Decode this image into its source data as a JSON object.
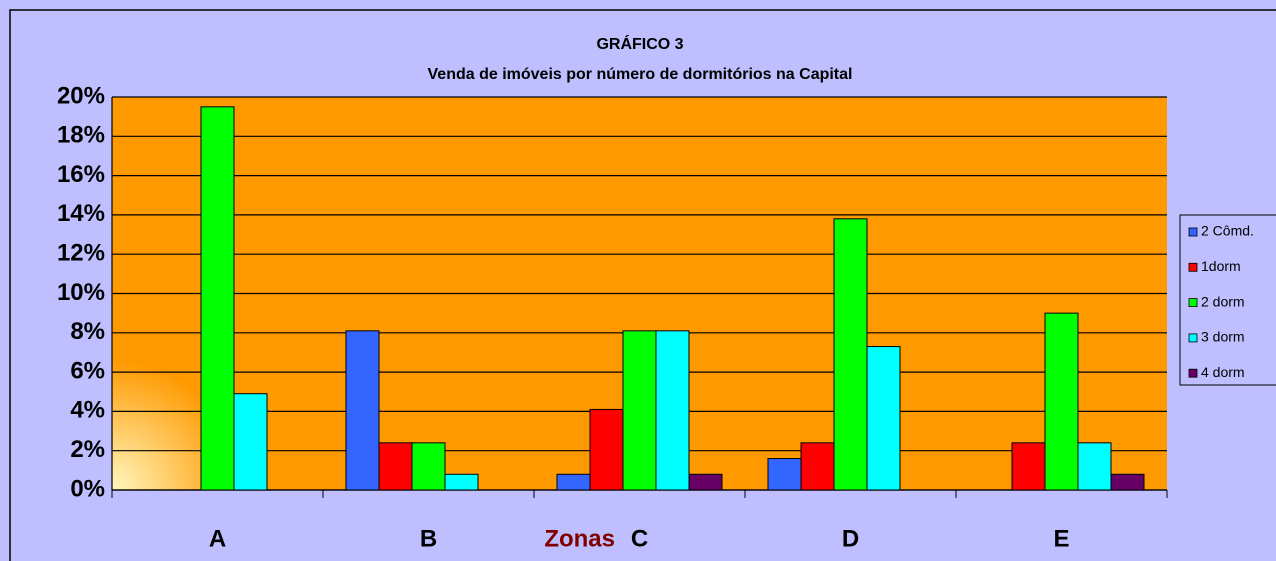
{
  "chart_data": {
    "type": "bar",
    "title": "GRÁFICO 3",
    "subtitle": "Venda de imóveis por número de dormitórios na Capital",
    "x_label": "Zonas",
    "categories": [
      "A",
      "B",
      "C",
      "D",
      "E"
    ],
    "series": [
      {
        "name": "2 Cômd.",
        "color": "#3366ff",
        "values": [
          0,
          8.1,
          0.8,
          1.6,
          0
        ]
      },
      {
        "name": "1dorm",
        "color": "#ff0000",
        "values": [
          0,
          2.4,
          4.1,
          2.4,
          2.4
        ]
      },
      {
        "name": "2 dorm",
        "color": "#00ff00",
        "values": [
          19.5,
          2.4,
          8.1,
          13.8,
          9.0
        ]
      },
      {
        "name": "3 dorm",
        "color": "#00ffff",
        "values": [
          4.9,
          0.8,
          8.1,
          7.3,
          2.4
        ]
      },
      {
        "name": "4 dorm",
        "color": "#660066",
        "values": [
          0,
          0,
          0.8,
          0,
          0.8
        ]
      }
    ],
    "ylim": [
      0,
      20
    ],
    "yticks": [
      {
        "value": 0,
        "label": "0%"
      },
      {
        "value": 2,
        "label": "2%"
      },
      {
        "value": 4,
        "label": "4%"
      },
      {
        "value": 6,
        "label": "6%"
      },
      {
        "value": 8,
        "label": "8%"
      },
      {
        "value": 10,
        "label": "10%"
      },
      {
        "value": 12,
        "label": "12%"
      },
      {
        "value": 14,
        "label": "14%"
      },
      {
        "value": 16,
        "label": "16%"
      },
      {
        "value": 18,
        "label": "18%"
      },
      {
        "value": 20,
        "label": "20%"
      }
    ],
    "grid": true,
    "legend": "right"
  }
}
